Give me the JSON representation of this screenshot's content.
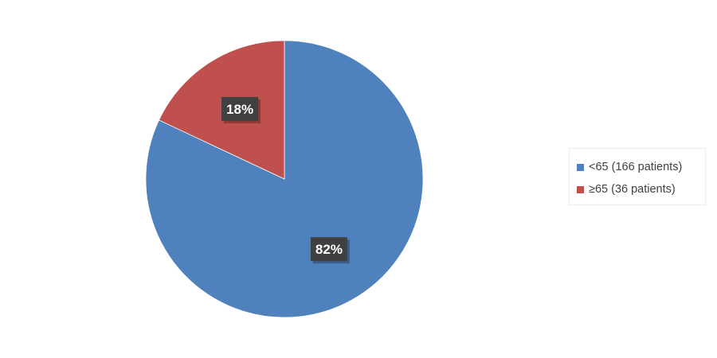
{
  "chart_data": {
    "type": "pie",
    "title": "",
    "categories": [
      "<65 (166 patients)",
      "≥65 (36 patients)"
    ],
    "values": [
      82,
      18
    ],
    "data_labels": [
      "82%",
      "18%"
    ],
    "colors": [
      "#4f81bd",
      "#c0504d"
    ],
    "legend_position": "right",
    "start_angle": "12 o'clock",
    "direction": "clockwise"
  },
  "legend": {
    "items": [
      {
        "label": "<65 (166 patients)",
        "color": "#4f81bd"
      },
      {
        "label": "≥65 (36 patients)",
        "color": "#c0504d"
      }
    ]
  }
}
